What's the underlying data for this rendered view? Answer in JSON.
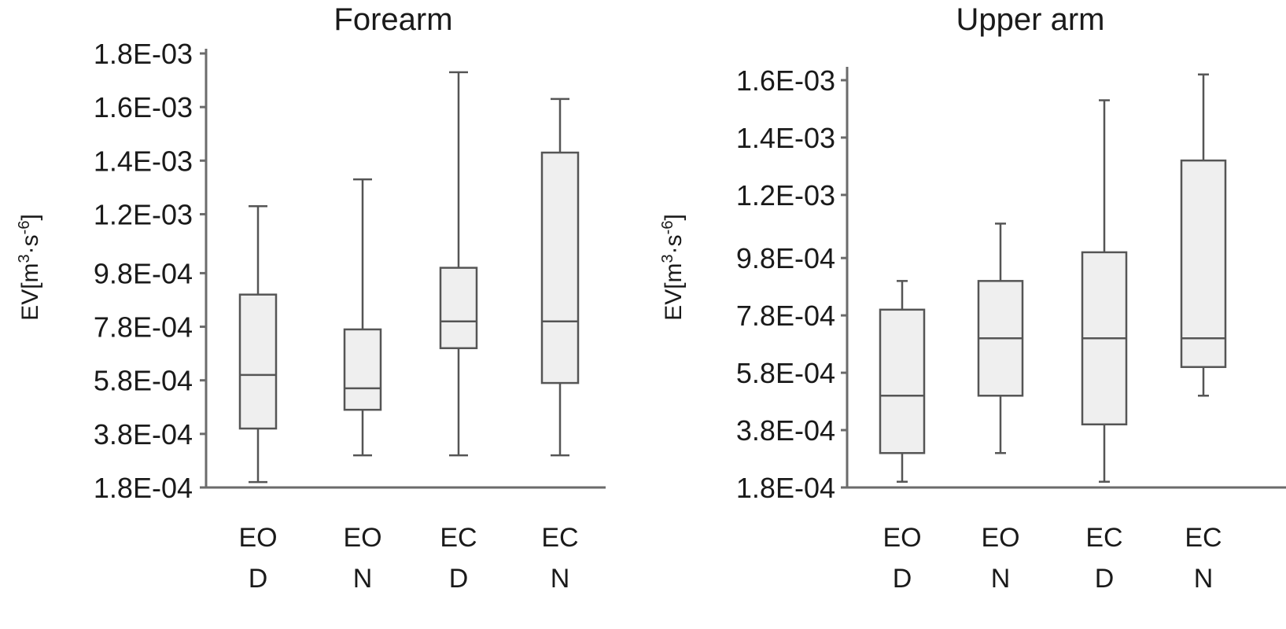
{
  "chart_data": [
    {
      "type": "boxplot",
      "title": "Forearm",
      "ylabel": "EV[m3·s-6]",
      "ylim": [
        0.00018,
        0.0018
      ],
      "y_ticks": [
        "1.8E-04",
        "3.8E-04",
        "5.8E-04",
        "7.8E-04",
        "9.8E-04",
        "1.2E-03",
        "1.4E-03",
        "1.6E-03",
        "1.8E-03"
      ],
      "y_tick_values": [
        0.00018,
        0.00038,
        0.00058,
        0.00078,
        0.00098,
        0.0012,
        0.0014,
        0.0016,
        0.0018
      ],
      "categories": [
        [
          "EO",
          "D"
        ],
        [
          "EO",
          "N"
        ],
        [
          "EC",
          "D"
        ],
        [
          "EC",
          "N"
        ]
      ],
      "boxes": [
        {
          "min": 0.0002,
          "q1": 0.0004,
          "median": 0.0006,
          "q3": 0.0009,
          "max": 0.00123
        },
        {
          "min": 0.0003,
          "q1": 0.00047,
          "median": 0.00055,
          "q3": 0.00077,
          "max": 0.00133
        },
        {
          "min": 0.0003,
          "q1": 0.0007,
          "median": 0.0008,
          "q3": 0.001,
          "max": 0.00173
        },
        {
          "min": 0.0003,
          "q1": 0.00057,
          "median": 0.0008,
          "q3": 0.00143,
          "max": 0.00163
        }
      ]
    },
    {
      "type": "boxplot",
      "title": "Upper arm",
      "ylabel": "EV[m3·s-6]",
      "ylim": [
        0.00018,
        0.00165
      ],
      "y_ticks": [
        "1.8E-04",
        "3.8E-04",
        "5.8E-04",
        "7.8E-04",
        "9.8E-04",
        "1.2E-03",
        "1.4E-03",
        "1.6E-03"
      ],
      "y_tick_values": [
        0.00018,
        0.00038,
        0.00058,
        0.00078,
        0.00098,
        0.0012,
        0.0014,
        0.0016
      ],
      "categories": [
        [
          "EO",
          "D"
        ],
        [
          "EO",
          "N"
        ],
        [
          "EC",
          "D"
        ],
        [
          "EC",
          "N"
        ]
      ],
      "boxes": [
        {
          "min": 0.0002,
          "q1": 0.0003,
          "median": 0.0005,
          "q3": 0.0008,
          "max": 0.0009
        },
        {
          "min": 0.0003,
          "q1": 0.0005,
          "median": 0.0007,
          "q3": 0.0009,
          "max": 0.0011
        },
        {
          "min": 0.0002,
          "q1": 0.0004,
          "median": 0.0007,
          "q3": 0.001,
          "max": 0.00153
        },
        {
          "min": 0.0005,
          "q1": 0.0006,
          "median": 0.0007,
          "q3": 0.00132,
          "max": 0.00162
        }
      ]
    }
  ]
}
